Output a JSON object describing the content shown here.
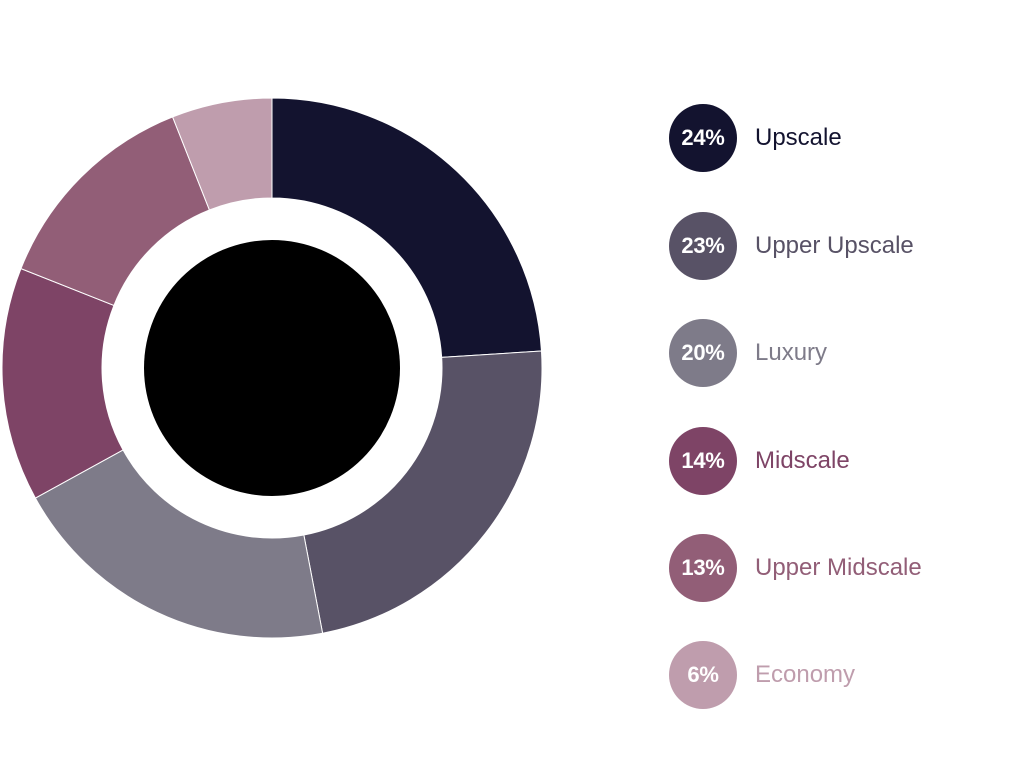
{
  "chart_data": {
    "type": "pie",
    "donut": true,
    "categories": [
      "Upscale",
      "Upper Upscale",
      "Luxury",
      "Midscale",
      "Upper Midscale",
      "Economy"
    ],
    "values": [
      24,
      23,
      20,
      14,
      13,
      6
    ],
    "value_labels": [
      "24%",
      "23%",
      "20%",
      "14%",
      "13%",
      "6%"
    ],
    "colors": [
      "#13132f",
      "#585266",
      "#7e7b89",
      "#7e4466",
      "#925e77",
      "#bf9dad"
    ],
    "center_color": "#000000",
    "ring_gap_color": "#ffffff",
    "legend_position": "right",
    "start_angle": "top",
    "direction": "clockwise"
  }
}
